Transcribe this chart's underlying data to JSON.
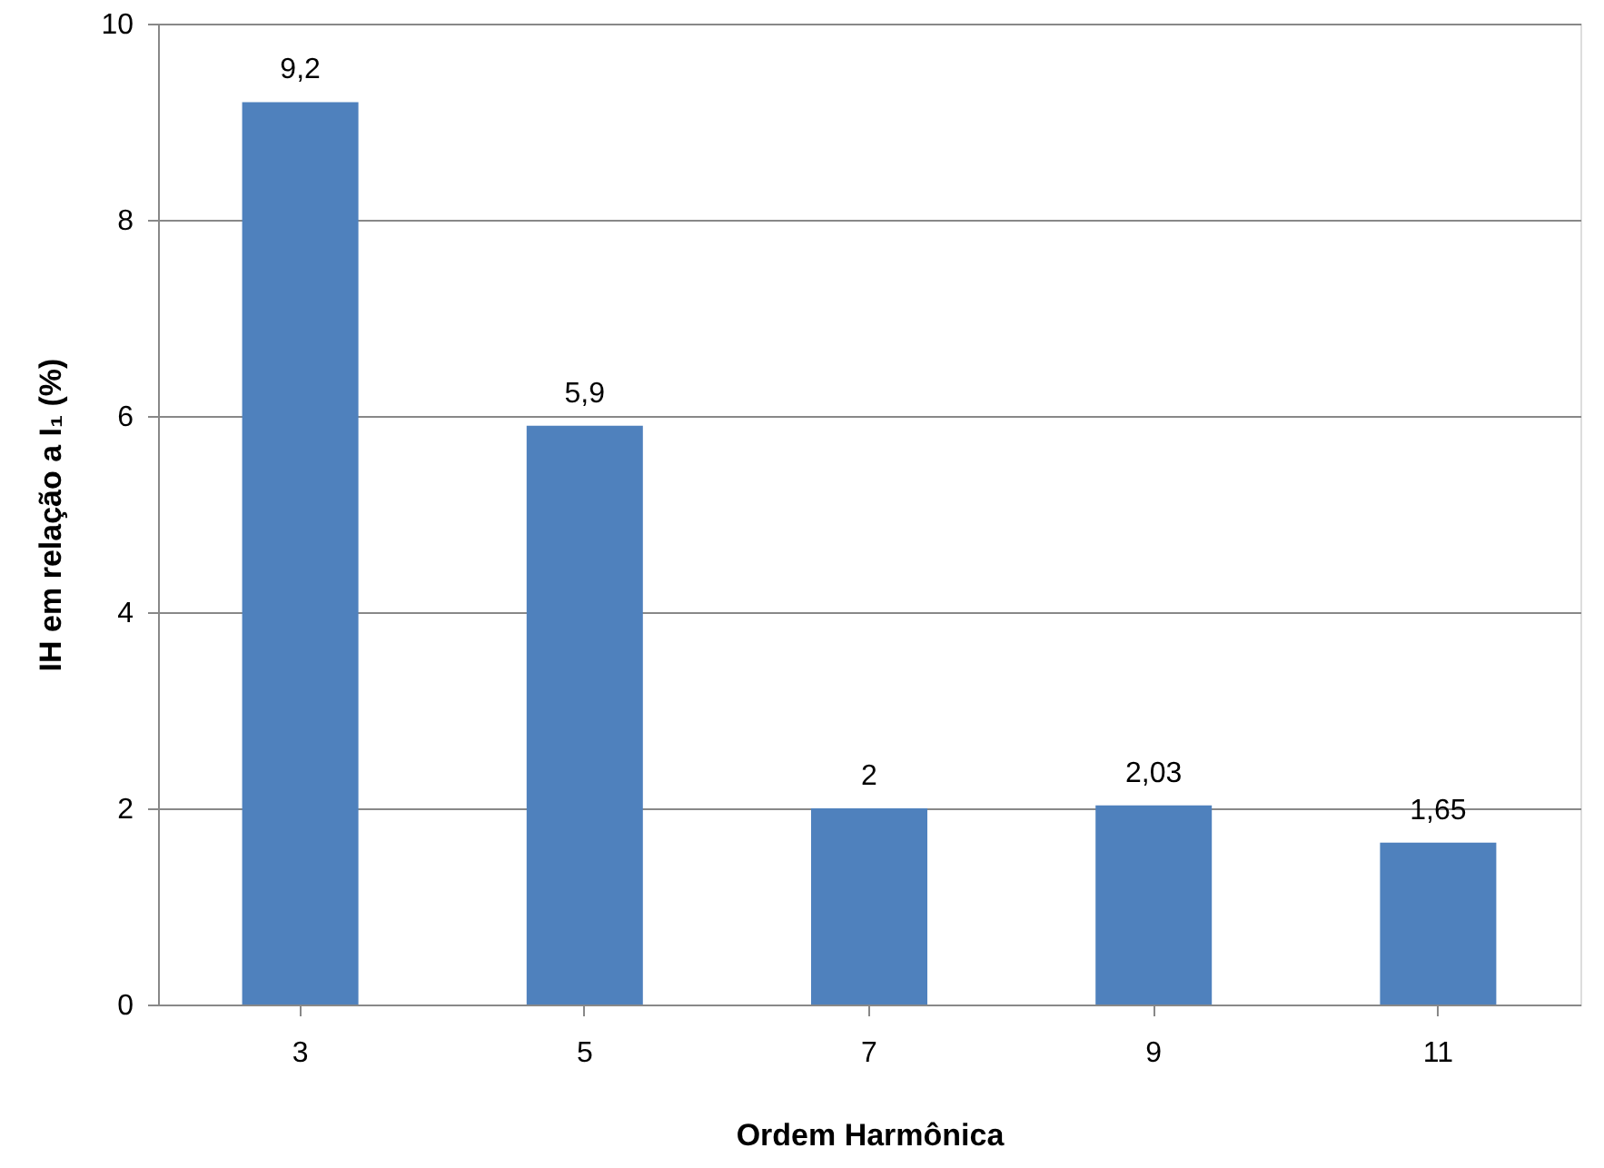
{
  "chart_data": {
    "type": "bar",
    "xlabel": "Ordem Harmônica",
    "ylabel": "IH em relação a I₁ (%)",
    "categories": [
      "3",
      "5",
      "7",
      "9",
      "11"
    ],
    "values": [
      9.2,
      5.9,
      2,
      2.03,
      1.65
    ],
    "value_labels": [
      "9,2",
      "5,9",
      "2",
      "2,03",
      "1,65"
    ],
    "color": "#4f81bd",
    "ylim": [
      0,
      10
    ],
    "yticks": [
      0,
      2,
      4,
      6,
      8,
      10
    ],
    "grid": "y"
  }
}
